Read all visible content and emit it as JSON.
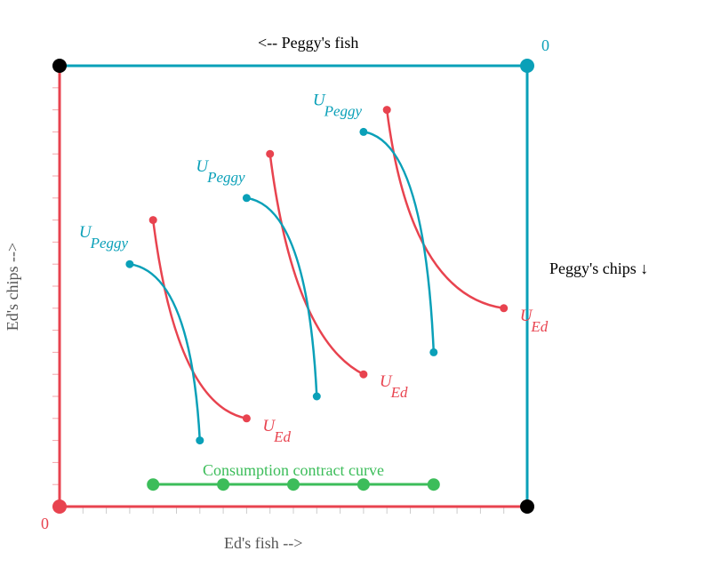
{
  "labels": {
    "top": "<-- Peggy's fish",
    "right": "Peggy's chips ↓",
    "bottom": "Ed's fish -->",
    "left": "Ed's chips -->",
    "origin_ed": "0",
    "origin_peggy": "0",
    "contract_curve": "Consumption contract curve",
    "u_letter": "U",
    "u_sub_peggy": "Peggy",
    "u_sub_ed": "Ed"
  },
  "colors": {
    "ed": "#e8434f",
    "peggy": "#0aa0b8",
    "contract": "#3cbd5a",
    "corner": "#000000"
  },
  "indifference": {
    "ed_curves": [
      {
        "start": [
          0.2,
          0.65
        ],
        "end": [
          0.4,
          0.2
        ]
      },
      {
        "start": [
          0.45,
          0.8
        ],
        "end": [
          0.65,
          0.3
        ]
      },
      {
        "start": [
          0.7,
          0.9
        ],
        "end": [
          0.95,
          0.45
        ]
      }
    ],
    "peggy_curves": [
      {
        "start": [
          0.15,
          0.55
        ],
        "end": [
          0.3,
          0.15
        ]
      },
      {
        "start": [
          0.4,
          0.7
        ],
        "end": [
          0.55,
          0.25
        ]
      },
      {
        "start": [
          0.65,
          0.85
        ],
        "end": [
          0.8,
          0.35
        ]
      }
    ],
    "contract_points": [
      0.2,
      0.35,
      0.5,
      0.65,
      0.8
    ],
    "contract_level": 0.05
  }
}
